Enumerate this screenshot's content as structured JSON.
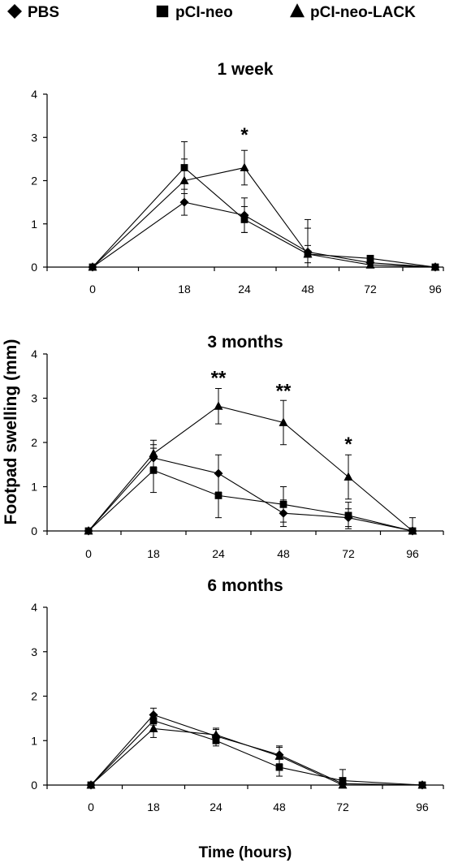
{
  "legend": {
    "items": [
      {
        "label": "PBS",
        "marker": "diamond"
      },
      {
        "label": "pCI-neo",
        "marker": "square"
      },
      {
        "label": "pCI-neo-LACK",
        "marker": "triangle"
      }
    ]
  },
  "ylabel": "Footpad swelling (mm)",
  "xlabel": "Time (hours)",
  "chart_data": [
    {
      "type": "line",
      "title": "1 week",
      "categories": [
        "0",
        "18",
        "24",
        "48",
        "72",
        "96"
      ],
      "yticks": [
        "0",
        "1",
        "2",
        "3",
        "4"
      ],
      "ylim": [
        0,
        4
      ],
      "series": [
        {
          "name": "PBS",
          "marker": "diamond",
          "values": [
            0,
            1.5,
            1.2,
            0.35,
            0.1,
            0
          ],
          "errors": [
            0,
            0.3,
            0.4,
            0.75,
            0,
            0
          ]
        },
        {
          "name": "pCI-neo",
          "marker": "square",
          "values": [
            0,
            2.3,
            1.1,
            0.3,
            0.2,
            0
          ],
          "errors": [
            0,
            0.6,
            0.3,
            0.2,
            0,
            0
          ]
        },
        {
          "name": "pCI-neo-LACK",
          "marker": "triangle",
          "values": [
            0,
            2.0,
            2.3,
            0.3,
            0.05,
            0
          ],
          "errors": [
            0,
            0.5,
            0.4,
            0.6,
            0,
            0
          ]
        }
      ],
      "annotations": [
        {
          "category": "24",
          "text": "*",
          "y": 3.1
        }
      ]
    },
    {
      "type": "line",
      "title": "3 months",
      "categories": [
        "0",
        "18",
        "24",
        "48",
        "72",
        "96"
      ],
      "yticks": [
        "0",
        "1",
        "2",
        "3",
        "4"
      ],
      "ylim": [
        0,
        4
      ],
      "series": [
        {
          "name": "PBS",
          "marker": "diamond",
          "values": [
            0,
            1.65,
            1.3,
            0.4,
            0.3,
            0
          ],
          "errors": [
            0,
            0.3,
            0.42,
            0.3,
            0.2,
            0
          ]
        },
        {
          "name": "pCI-neo",
          "marker": "square",
          "values": [
            0,
            1.37,
            0.8,
            0.6,
            0.35,
            0
          ],
          "errors": [
            0,
            0.5,
            0.5,
            0.4,
            0.3,
            0
          ]
        },
        {
          "name": "pCI-neo-LACK",
          "marker": "triangle",
          "values": [
            0,
            1.75,
            2.82,
            2.45,
            1.22,
            0
          ],
          "errors": [
            0,
            0.3,
            0.4,
            0.5,
            0.5,
            0.3
          ]
        }
      ],
      "annotations": [
        {
          "category": "24",
          "text": "**",
          "y": 3.5
        },
        {
          "category": "48",
          "text": "**",
          "y": 3.2
        },
        {
          "category": "72",
          "text": "*",
          "y": 2.0
        }
      ]
    },
    {
      "type": "line",
      "title": "6 months",
      "categories": [
        "0",
        "18",
        "24",
        "48",
        "72",
        "96"
      ],
      "yticks": [
        "0",
        "1",
        "2",
        "3",
        "4"
      ],
      "ylim": [
        0,
        4
      ],
      "series": [
        {
          "name": "PBS",
          "marker": "diamond",
          "values": [
            0,
            1.58,
            1.1,
            0.68,
            0.03,
            0
          ],
          "errors": [
            0,
            0.15,
            0.15,
            0.2,
            0,
            0
          ]
        },
        {
          "name": "pCI-neo",
          "marker": "square",
          "values": [
            0,
            1.45,
            1.0,
            0.4,
            0.1,
            0
          ],
          "errors": [
            0,
            0.1,
            0.12,
            0.2,
            0.25,
            0
          ]
        },
        {
          "name": "pCI-neo-LACK",
          "marker": "triangle",
          "values": [
            0,
            1.27,
            1.13,
            0.65,
            0.0,
            0
          ],
          "errors": [
            0,
            0.2,
            0.15,
            0.2,
            0,
            0
          ]
        }
      ],
      "annotations": []
    }
  ]
}
